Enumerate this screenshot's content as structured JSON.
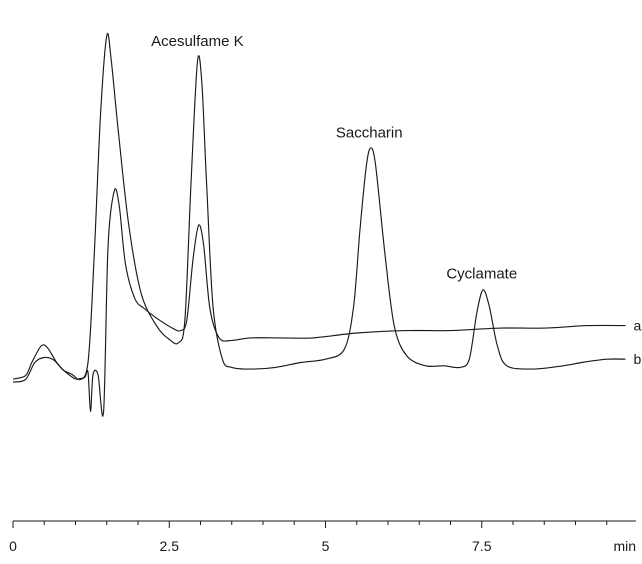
{
  "chart_data": {
    "type": "line",
    "title": "",
    "xlabel": "",
    "ylabel": "",
    "x_unit": "min",
    "xlim": [
      0,
      10
    ],
    "grid": false,
    "x_ticks": [
      {
        "value": 0,
        "label": "0"
      },
      {
        "value": 2.5,
        "label": "2.5"
      },
      {
        "value": 5,
        "label": "5"
      },
      {
        "value": 7.5,
        "label": "7.5"
      }
    ],
    "x_minor_step": 0.5,
    "peak_labels": [
      {
        "text": "Acesulfame K",
        "x": 2.95
      },
      {
        "text": "Saccharin",
        "x": 5.7
      },
      {
        "text": "Cyclamate",
        "x": 7.5
      }
    ],
    "series": [
      {
        "name": "b",
        "points": [
          [
            0.0,
            0.0
          ],
          [
            0.2,
            0.01
          ],
          [
            0.3,
            0.05
          ],
          [
            0.45,
            0.1
          ],
          [
            0.55,
            0.095
          ],
          [
            0.7,
            0.05
          ],
          [
            0.85,
            0.02
          ],
          [
            1.05,
            0.0
          ],
          [
            1.2,
            0.05
          ],
          [
            1.3,
            0.38
          ],
          [
            1.4,
            0.8
          ],
          [
            1.5,
            1.04
          ],
          [
            1.57,
            0.97
          ],
          [
            1.68,
            0.76
          ],
          [
            1.85,
            0.47
          ],
          [
            2.05,
            0.26
          ],
          [
            2.3,
            0.16
          ],
          [
            2.5,
            0.12
          ],
          [
            2.65,
            0.11
          ],
          [
            2.75,
            0.18
          ],
          [
            2.85,
            0.6
          ],
          [
            2.95,
            0.96
          ],
          [
            3.02,
            0.9
          ],
          [
            3.1,
            0.58
          ],
          [
            3.2,
            0.22
          ],
          [
            3.35,
            0.06
          ],
          [
            3.5,
            0.035
          ],
          [
            3.8,
            0.03
          ],
          [
            4.2,
            0.035
          ],
          [
            4.6,
            0.05
          ],
          [
            5.0,
            0.06
          ],
          [
            5.3,
            0.09
          ],
          [
            5.45,
            0.22
          ],
          [
            5.55,
            0.45
          ],
          [
            5.65,
            0.64
          ],
          [
            5.72,
            0.7
          ],
          [
            5.8,
            0.65
          ],
          [
            5.95,
            0.38
          ],
          [
            6.1,
            0.16
          ],
          [
            6.3,
            0.07
          ],
          [
            6.6,
            0.04
          ],
          [
            6.9,
            0.04
          ],
          [
            7.15,
            0.035
          ],
          [
            7.3,
            0.06
          ],
          [
            7.42,
            0.2
          ],
          [
            7.52,
            0.27
          ],
          [
            7.62,
            0.22
          ],
          [
            7.75,
            0.1
          ],
          [
            7.9,
            0.04
          ],
          [
            8.3,
            0.03
          ],
          [
            8.8,
            0.04
          ],
          [
            9.1,
            0.05
          ],
          [
            9.5,
            0.06
          ],
          [
            9.8,
            0.06
          ]
        ]
      },
      {
        "name": "a",
        "points": [
          [
            0.0,
            0.0
          ],
          [
            0.2,
            0.01
          ],
          [
            0.35,
            0.08
          ],
          [
            0.5,
            0.1
          ],
          [
            0.65,
            0.09
          ],
          [
            0.8,
            0.05
          ],
          [
            0.95,
            0.03
          ],
          [
            1.05,
            0.01
          ],
          [
            1.15,
            0.02
          ],
          [
            1.2,
            0.04
          ],
          [
            1.24,
            -0.12
          ],
          [
            1.28,
            0.03
          ],
          [
            1.36,
            0.03
          ],
          [
            1.45,
            -0.12
          ],
          [
            1.52,
            0.55
          ],
          [
            1.62,
            0.78
          ],
          [
            1.7,
            0.72
          ],
          [
            1.8,
            0.48
          ],
          [
            1.95,
            0.34
          ],
          [
            2.1,
            0.3
          ],
          [
            2.3,
            0.26
          ],
          [
            2.55,
            0.22
          ],
          [
            2.68,
            0.21
          ],
          [
            2.78,
            0.25
          ],
          [
            2.88,
            0.5
          ],
          [
            2.97,
            0.64
          ],
          [
            3.05,
            0.56
          ],
          [
            3.15,
            0.3
          ],
          [
            3.3,
            0.18
          ],
          [
            3.5,
            0.17
          ],
          [
            3.8,
            0.18
          ],
          [
            4.3,
            0.18
          ],
          [
            4.8,
            0.18
          ],
          [
            5.5,
            0.2
          ],
          [
            6.3,
            0.21
          ],
          [
            7.0,
            0.21
          ],
          [
            7.8,
            0.22
          ],
          [
            8.5,
            0.22
          ],
          [
            9.2,
            0.23
          ],
          [
            9.8,
            0.23
          ]
        ]
      }
    ]
  }
}
